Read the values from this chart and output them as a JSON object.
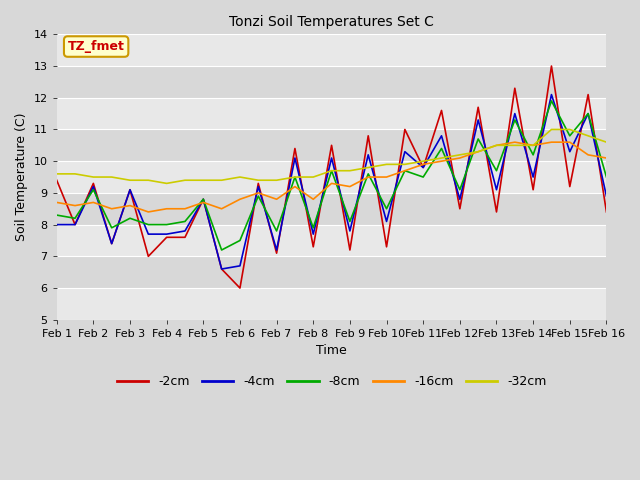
{
  "title": "Tonzi Soil Temperatures Set C",
  "xlabel": "Time",
  "ylabel": "Soil Temperature (C)",
  "xlim": [
    0,
    15
  ],
  "ylim": [
    5.0,
    14.0
  ],
  "yticks": [
    5.0,
    6.0,
    7.0,
    8.0,
    9.0,
    10.0,
    11.0,
    12.0,
    13.0,
    14.0
  ],
  "xtick_labels": [
    "Feb 1",
    "Feb 2",
    "Feb 3",
    "Feb 4",
    "Feb 5",
    "Feb 6",
    "Feb 7",
    "Feb 8",
    "Feb 9",
    "Feb 10",
    "Feb 11",
    "Feb 12",
    "Feb 13",
    "Feb 14",
    "Feb 15",
    "Feb 16"
  ],
  "annotation_text": "TZ_fmet",
  "annotation_color": "#cc0000",
  "annotation_bg": "#ffffcc",
  "annotation_border": "#cc9900",
  "series": {
    "-2cm": {
      "color": "#cc0000",
      "x": [
        0,
        0.5,
        1,
        1.5,
        2,
        2.5,
        3,
        3.5,
        4,
        4.5,
        5,
        5.5,
        6,
        6.5,
        7,
        7.5,
        8,
        8.5,
        9,
        9.5,
        10,
        10.5,
        11,
        11.5,
        12,
        12.5,
        13,
        13.5,
        14,
        14.5,
        15
      ],
      "y": [
        9.4,
        8.0,
        9.3,
        7.4,
        9.1,
        7.0,
        7.6,
        7.6,
        8.8,
        6.6,
        6.0,
        9.3,
        7.1,
        10.4,
        7.3,
        10.5,
        7.2,
        10.8,
        7.3,
        11.0,
        9.8,
        11.6,
        8.5,
        11.7,
        8.4,
        12.3,
        9.1,
        13.0,
        9.2,
        12.1,
        8.4
      ]
    },
    "-4cm": {
      "color": "#0000cc",
      "x": [
        0,
        0.5,
        1,
        1.5,
        2,
        2.5,
        3,
        3.5,
        4,
        4.5,
        5,
        5.5,
        6,
        6.5,
        7,
        7.5,
        8,
        8.5,
        9,
        9.5,
        10,
        10.5,
        11,
        11.5,
        12,
        12.5,
        13,
        13.5,
        14,
        14.5,
        15
      ],
      "y": [
        8.0,
        8.0,
        9.2,
        7.4,
        9.1,
        7.7,
        7.7,
        7.8,
        8.8,
        6.6,
        6.7,
        9.2,
        7.2,
        10.1,
        7.7,
        10.1,
        7.8,
        10.2,
        8.1,
        10.3,
        9.8,
        10.8,
        8.8,
        11.3,
        9.1,
        11.5,
        9.5,
        12.1,
        10.3,
        11.5,
        8.9
      ]
    },
    "-8cm": {
      "color": "#00aa00",
      "x": [
        0,
        0.5,
        1,
        1.5,
        2,
        2.5,
        3,
        3.5,
        4,
        4.5,
        5,
        5.5,
        6,
        6.5,
        7,
        7.5,
        8,
        8.5,
        9,
        9.5,
        10,
        10.5,
        11,
        11.5,
        12,
        12.5,
        13,
        13.5,
        14,
        14.5,
        15
      ],
      "y": [
        8.3,
        8.2,
        9.1,
        7.9,
        8.2,
        8.0,
        8.0,
        8.1,
        8.8,
        7.2,
        7.5,
        8.9,
        7.8,
        9.5,
        7.9,
        9.7,
        8.1,
        9.6,
        8.5,
        9.7,
        9.5,
        10.4,
        9.1,
        10.7,
        9.7,
        11.3,
        10.2,
        11.9,
        10.8,
        11.5,
        9.5
      ]
    },
    "-16cm": {
      "color": "#ff8800",
      "x": [
        0,
        0.5,
        1,
        1.5,
        2,
        2.5,
        3,
        3.5,
        4,
        4.5,
        5,
        5.5,
        6,
        6.5,
        7,
        7.5,
        8,
        8.5,
        9,
        9.5,
        10,
        10.5,
        11,
        11.5,
        12,
        12.5,
        13,
        13.5,
        14,
        14.5,
        15
      ],
      "y": [
        8.7,
        8.6,
        8.7,
        8.5,
        8.6,
        8.4,
        8.5,
        8.5,
        8.7,
        8.5,
        8.8,
        9.0,
        8.8,
        9.2,
        8.8,
        9.3,
        9.2,
        9.5,
        9.5,
        9.7,
        9.9,
        10.0,
        10.1,
        10.3,
        10.5,
        10.6,
        10.5,
        10.6,
        10.6,
        10.2,
        10.1
      ]
    },
    "-32cm": {
      "color": "#cccc00",
      "x": [
        0,
        0.5,
        1,
        1.5,
        2,
        2.5,
        3,
        3.5,
        4,
        4.5,
        5,
        5.5,
        6,
        6.5,
        7,
        7.5,
        8,
        8.5,
        9,
        9.5,
        10,
        10.5,
        11,
        11.5,
        12,
        12.5,
        13,
        13.5,
        14,
        14.5,
        15
      ],
      "y": [
        9.6,
        9.6,
        9.5,
        9.5,
        9.4,
        9.4,
        9.3,
        9.4,
        9.4,
        9.4,
        9.5,
        9.4,
        9.4,
        9.5,
        9.5,
        9.7,
        9.7,
        9.8,
        9.9,
        9.9,
        10.0,
        10.1,
        10.2,
        10.3,
        10.5,
        10.5,
        10.5,
        11.0,
        11.0,
        10.8,
        10.6
      ]
    }
  },
  "legend_entries": [
    "-2cm",
    "-4cm",
    "-8cm",
    "-16cm",
    "-32cm"
  ],
  "legend_colors": [
    "#cc0000",
    "#0000cc",
    "#00aa00",
    "#ff8800",
    "#cccc00"
  ],
  "fig_bg_color": "#d8d8d8",
  "plot_bg_color": "#e8e8e8",
  "grid_color": "#ffffff",
  "band_color_dark": "#d8d8d8",
  "band_color_light": "#e8e8e8"
}
